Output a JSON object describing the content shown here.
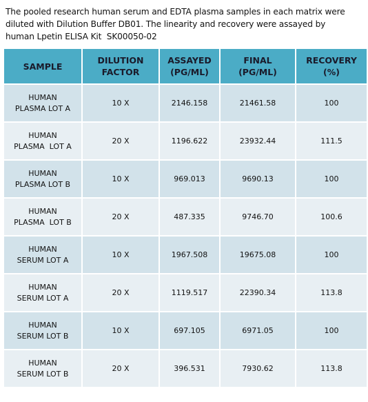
{
  "intro": [
    "The pooled research human serum and EDTA plasma samples in each matrix were",
    "diluted with Dilution Buffer DB01. The linearity and recovery were assayed by",
    "human Lpetin ELISA Kit  SK00050-02"
  ],
  "table": {
    "headers": [
      [
        "SAMPLE"
      ],
      [
        "DILUTION",
        "FACTOR"
      ],
      [
        "ASSAYED",
        "(PG/ML)"
      ],
      [
        "FINAL",
        "(PG/ML)"
      ],
      [
        "RECOVERY",
        "(%)"
      ]
    ],
    "rows": [
      [
        [
          "HUMAN",
          "PLASMA LOT A"
        ],
        "10 X",
        "2146.158",
        "21461.58",
        "100"
      ],
      [
        [
          "HUMAN",
          "PLASMA  LOT A"
        ],
        "20 X",
        "1196.622",
        "23932.44",
        "111.5"
      ],
      [
        [
          "HUMAN",
          "PLASMA LOT B"
        ],
        "10 X",
        "969.013",
        "9690.13",
        "100"
      ],
      [
        [
          "HUMAN",
          "PLASMA  LOT B"
        ],
        "20 X",
        "487.335",
        "9746.70",
        "100.6"
      ],
      [
        [
          "HUMAN",
          "SERUM LOT A"
        ],
        "10 X",
        "1967.508",
        "19675.08",
        "100"
      ],
      [
        [
          "HUMAN",
          "SERUM LOT A"
        ],
        "20 X",
        "1119.517",
        "22390.34",
        "113.8"
      ],
      [
        [
          "HUMAN",
          "SERUM LOT B"
        ],
        "10 X",
        "697.105",
        "6971.05",
        "100"
      ],
      [
        [
          "HUMAN",
          "SERUM LOT B"
        ],
        "20 X",
        "396.531",
        "7930.62",
        "113.8"
      ]
    ]
  }
}
